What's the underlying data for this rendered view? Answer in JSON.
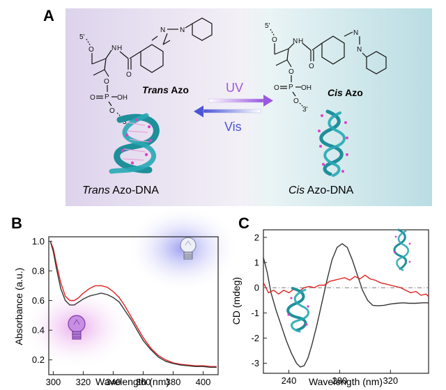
{
  "panels": {
    "a": {
      "letter": "A",
      "trans_label_italic": "Trans",
      "trans_label_rest": " Azo",
      "cis_label_italic": "Cis",
      "cis_label_rest": " Azo",
      "uv_label": "UV",
      "vis_label": "Vis",
      "trans_dna_italic": "Trans",
      "trans_dna_rest": " Azo-DNA",
      "cis_dna_italic": "Cis",
      "cis_dna_rest": " Azo-DNA",
      "struct_labels": {
        "five_prime": "5'",
        "three_prime": "3'",
        "nh": "N",
        "h": "H",
        "n1": "N",
        "n2": "N",
        "o": "O",
        "p": "P",
        "oh": "OH"
      },
      "colors": {
        "uv": "#9b57e0",
        "vis": "#4b55d6",
        "helix": "#1f8f9a",
        "beads": "#e040c8"
      }
    },
    "b": {
      "letter": "B",
      "icons": [
        "lightbulb-icon-uv",
        "lightbulb-icon-vis"
      ]
    },
    "c": {
      "letter": "C",
      "icons": [
        "dna-helix-icon-trans",
        "dna-helix-icon-cis"
      ]
    }
  },
  "chart_data": [
    {
      "id": "B",
      "type": "line",
      "xlabel": "Wavelength (nm)",
      "ylabel": "Absorbance (a.u.)",
      "xlim": [
        297,
        410
      ],
      "ylim": [
        0.1,
        1.03
      ],
      "xticks": [
        300,
        320,
        340,
        360,
        380,
        400
      ],
      "yticks": [
        0.2,
        0.4,
        0.6,
        0.8,
        1.0
      ],
      "ytick_labels": [
        "0.2",
        "0.4",
        "0.6",
        "0.8",
        "1.0"
      ],
      "series": [
        {
          "color": "#e02020",
          "x": [
            298,
            300,
            302,
            305,
            308,
            311,
            314,
            317,
            320,
            324,
            328,
            332,
            336,
            340,
            344,
            348,
            352,
            356,
            360,
            365,
            370,
            375,
            380,
            385,
            390,
            395,
            400,
            405,
            409
          ],
          "y": [
            1.0,
            0.95,
            0.85,
            0.72,
            0.63,
            0.6,
            0.6,
            0.62,
            0.65,
            0.68,
            0.7,
            0.7,
            0.69,
            0.66,
            0.62,
            0.56,
            0.49,
            0.42,
            0.35,
            0.28,
            0.23,
            0.2,
            0.18,
            0.17,
            0.165,
            0.16,
            0.16,
            0.155,
            0.155
          ]
        },
        {
          "color": "#333333",
          "x": [
            298,
            300,
            302,
            305,
            308,
            311,
            314,
            317,
            320,
            324,
            328,
            332,
            336,
            340,
            344,
            348,
            352,
            356,
            360,
            365,
            370,
            375,
            380,
            385,
            390,
            395,
            400,
            405,
            409
          ],
          "y": [
            1.0,
            0.93,
            0.82,
            0.68,
            0.6,
            0.57,
            0.57,
            0.59,
            0.61,
            0.63,
            0.64,
            0.65,
            0.64,
            0.62,
            0.59,
            0.53,
            0.47,
            0.4,
            0.33,
            0.27,
            0.22,
            0.19,
            0.175,
            0.165,
            0.16,
            0.155,
            0.155,
            0.15,
            0.15
          ]
        }
      ]
    },
    {
      "id": "C",
      "type": "line",
      "xlabel": "Wavelength (nm)",
      "ylabel": "CD (mdeg)",
      "xlim": [
        220,
        350
      ],
      "ylim": [
        -3.4,
        2.3
      ],
      "xticks": [
        240,
        280,
        320
      ],
      "yticks": [
        2,
        1,
        0,
        -1,
        -2,
        -3
      ],
      "ytick_labels": [
        "2",
        "1",
        "0",
        "-1",
        "-2",
        "-3"
      ],
      "baseline": 0,
      "series": [
        {
          "color": "#333333",
          "x": [
            220,
            223,
            226,
            230,
            234,
            238,
            242,
            246,
            249,
            252,
            255,
            258,
            262,
            266,
            270,
            274,
            278,
            282,
            286,
            290,
            294,
            298,
            302,
            306,
            310,
            315,
            320,
            325,
            330,
            335,
            340,
            345,
            350
          ],
          "y": [
            1.2,
            0.6,
            -0.2,
            -0.9,
            -1.5,
            -2.1,
            -2.6,
            -3.0,
            -3.15,
            -3.1,
            -2.8,
            -2.3,
            -1.5,
            -0.6,
            0.3,
            1.1,
            1.6,
            1.75,
            1.6,
            1.1,
            0.5,
            -0.1,
            -0.5,
            -0.7,
            -0.72,
            -0.7,
            -0.65,
            -0.62,
            -0.6,
            -0.62,
            -0.62,
            -0.6,
            -0.6
          ]
        },
        {
          "color": "#e02020",
          "x": [
            220,
            224,
            228,
            232,
            236,
            240,
            244,
            248,
            252,
            256,
            260,
            264,
            268,
            272,
            276,
            280,
            284,
            288,
            292,
            296,
            300,
            304,
            308,
            312,
            316,
            320,
            324,
            328,
            332,
            336,
            340,
            344,
            348,
            350
          ],
          "y": [
            0.2,
            -0.2,
            -0.1,
            -0.25,
            -0.1,
            -0.2,
            -0.05,
            -0.15,
            0.0,
            0.05,
            0.0,
            0.1,
            0.1,
            0.25,
            0.3,
            0.35,
            0.4,
            0.3,
            0.45,
            0.35,
            0.5,
            0.35,
            0.3,
            0.2,
            0.15,
            0.1,
            0.05,
            0.0,
            -0.1,
            -0.2,
            -0.15,
            -0.3,
            -0.25,
            -0.35
          ]
        }
      ]
    }
  ]
}
